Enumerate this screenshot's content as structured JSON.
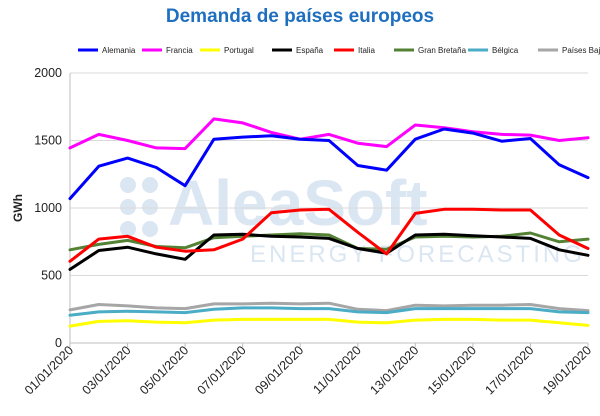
{
  "chart_data": {
    "type": "line",
    "title": "Demanda de países europeos",
    "ylabel": "GWh",
    "xlabel": "",
    "ylim": [
      0,
      2000
    ],
    "yticks": [
      0,
      500,
      1000,
      1500,
      2000
    ],
    "grid": "horizontal",
    "legend_position": "top",
    "x": [
      "01/01/2020",
      "02/01/2020",
      "03/01/2020",
      "04/01/2020",
      "05/01/2020",
      "06/01/2020",
      "07/01/2020",
      "08/01/2020",
      "09/01/2020",
      "10/01/2020",
      "11/01/2020",
      "12/01/2020",
      "13/01/2020",
      "14/01/2020",
      "15/01/2020",
      "16/01/2020",
      "17/01/2020",
      "18/01/2020",
      "19/01/2020"
    ],
    "xtick_labels": [
      "01/01/2020",
      "03/01/2020",
      "05/01/2020",
      "07/01/2020",
      "09/01/2020",
      "11/01/2020",
      "13/01/2020",
      "15/01/2020",
      "17/01/2020",
      "19/01/2020"
    ],
    "series": [
      {
        "name": "Alemania",
        "color": "#0000ff",
        "values": [
          1070,
          1310,
          1370,
          1300,
          1165,
          1510,
          1525,
          1535,
          1510,
          1500,
          1315,
          1280,
          1510,
          1585,
          1555,
          1495,
          1515,
          1320,
          1225
        ]
      },
      {
        "name": "Francia",
        "color": "#ff00ff",
        "values": [
          1445,
          1545,
          1500,
          1445,
          1440,
          1660,
          1630,
          1560,
          1510,
          1545,
          1480,
          1455,
          1615,
          1595,
          1565,
          1545,
          1540,
          1500,
          1520
        ]
      },
      {
        "name": "Portugal",
        "color": "#ffff00",
        "values": [
          125,
          160,
          165,
          155,
          150,
          170,
          175,
          175,
          175,
          175,
          155,
          150,
          170,
          175,
          175,
          170,
          170,
          150,
          130
        ]
      },
      {
        "name": "España",
        "color": "#000000",
        "values": [
          545,
          685,
          710,
          660,
          620,
          800,
          805,
          790,
          785,
          775,
          700,
          665,
          800,
          805,
          795,
          785,
          775,
          690,
          650
        ]
      },
      {
        "name": "Italia",
        "color": "#ff0000",
        "values": [
          605,
          770,
          790,
          710,
          680,
          690,
          770,
          965,
          985,
          990,
          820,
          660,
          960,
          990,
          990,
          985,
          985,
          800,
          700
        ]
      },
      {
        "name": "Gran Bretaña",
        "color": "#548235",
        "values": [
          690,
          730,
          760,
          715,
          705,
          780,
          790,
          800,
          810,
          800,
          700,
          695,
          785,
          790,
          785,
          790,
          815,
          750,
          770
        ]
      },
      {
        "name": "Bélgica",
        "color": "#4bacc6",
        "values": [
          205,
          230,
          235,
          230,
          225,
          250,
          260,
          260,
          255,
          255,
          230,
          225,
          255,
          255,
          255,
          255,
          255,
          230,
          225
        ]
      },
      {
        "name": "Países Bajos",
        "color": "#a6a6a6",
        "values": [
          245,
          285,
          275,
          260,
          255,
          290,
          290,
          295,
          290,
          295,
          250,
          240,
          280,
          275,
          280,
          280,
          285,
          255,
          240
        ]
      }
    ]
  },
  "watermark": {
    "brand": "AleaSoft",
    "tagline": "ENERGY FORECASTING"
  }
}
